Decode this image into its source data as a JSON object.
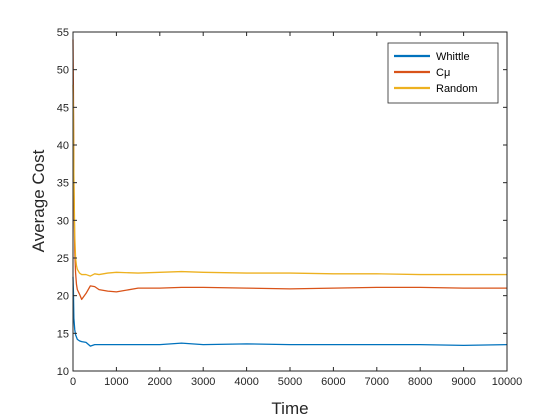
{
  "chart_data": {
    "type": "line",
    "xlabel": "Time",
    "ylabel": "Average Cost",
    "xlim": [
      0,
      10000
    ],
    "ylim": [
      10,
      55
    ],
    "xticks": [
      0,
      1000,
      2000,
      3000,
      4000,
      5000,
      6000,
      7000,
      8000,
      9000,
      10000
    ],
    "yticks": [
      10,
      15,
      20,
      25,
      30,
      35,
      40,
      45,
      50,
      55
    ],
    "grid": false,
    "legend_position": "top-right",
    "series": [
      {
        "name": "Whittle",
        "color": "#0072BD",
        "x": [
          0,
          10,
          20,
          40,
          60,
          80,
          100,
          150,
          200,
          300,
          400,
          500,
          600,
          800,
          1000,
          1500,
          2000,
          2500,
          3000,
          4000,
          5000,
          6000,
          7000,
          8000,
          9000,
          10000
        ],
        "y": [
          22.5,
          20.5,
          17,
          15.5,
          14.8,
          14.5,
          14.2,
          14.0,
          13.9,
          13.8,
          13.3,
          13.5,
          13.5,
          13.5,
          13.5,
          13.5,
          13.5,
          13.7,
          13.5,
          13.6,
          13.5,
          13.5,
          13.5,
          13.5,
          13.4,
          13.5
        ]
      },
      {
        "name": "Cμ",
        "color": "#D95319",
        "x": [
          0,
          10,
          20,
          40,
          60,
          80,
          100,
          150,
          200,
          300,
          400,
          500,
          600,
          800,
          1000,
          1500,
          2000,
          2500,
          3000,
          4000,
          5000,
          6000,
          7000,
          8000,
          9000,
          10000
        ],
        "y": [
          54,
          47,
          35,
          26,
          23,
          21.5,
          20.8,
          20.2,
          19.5,
          20.3,
          21.3,
          21.2,
          20.8,
          20.6,
          20.5,
          21.0,
          21.0,
          21.1,
          21.1,
          21.0,
          20.9,
          21.0,
          21.1,
          21.1,
          21.0,
          21.0
        ]
      },
      {
        "name": "Random",
        "color": "#EDB120",
        "x": [
          0,
          10,
          20,
          40,
          60,
          80,
          100,
          150,
          200,
          300,
          400,
          500,
          600,
          800,
          1000,
          1500,
          2000,
          2500,
          3000,
          4000,
          5000,
          6000,
          7000,
          8000,
          9000,
          10000
        ],
        "y": [
          48,
          44,
          36,
          28,
          25,
          24,
          23.5,
          23.0,
          22.8,
          22.8,
          22.6,
          22.9,
          22.8,
          23.0,
          23.1,
          23.0,
          23.1,
          23.2,
          23.1,
          23.0,
          23.0,
          22.9,
          22.9,
          22.8,
          22.8,
          22.8
        ]
      }
    ]
  }
}
